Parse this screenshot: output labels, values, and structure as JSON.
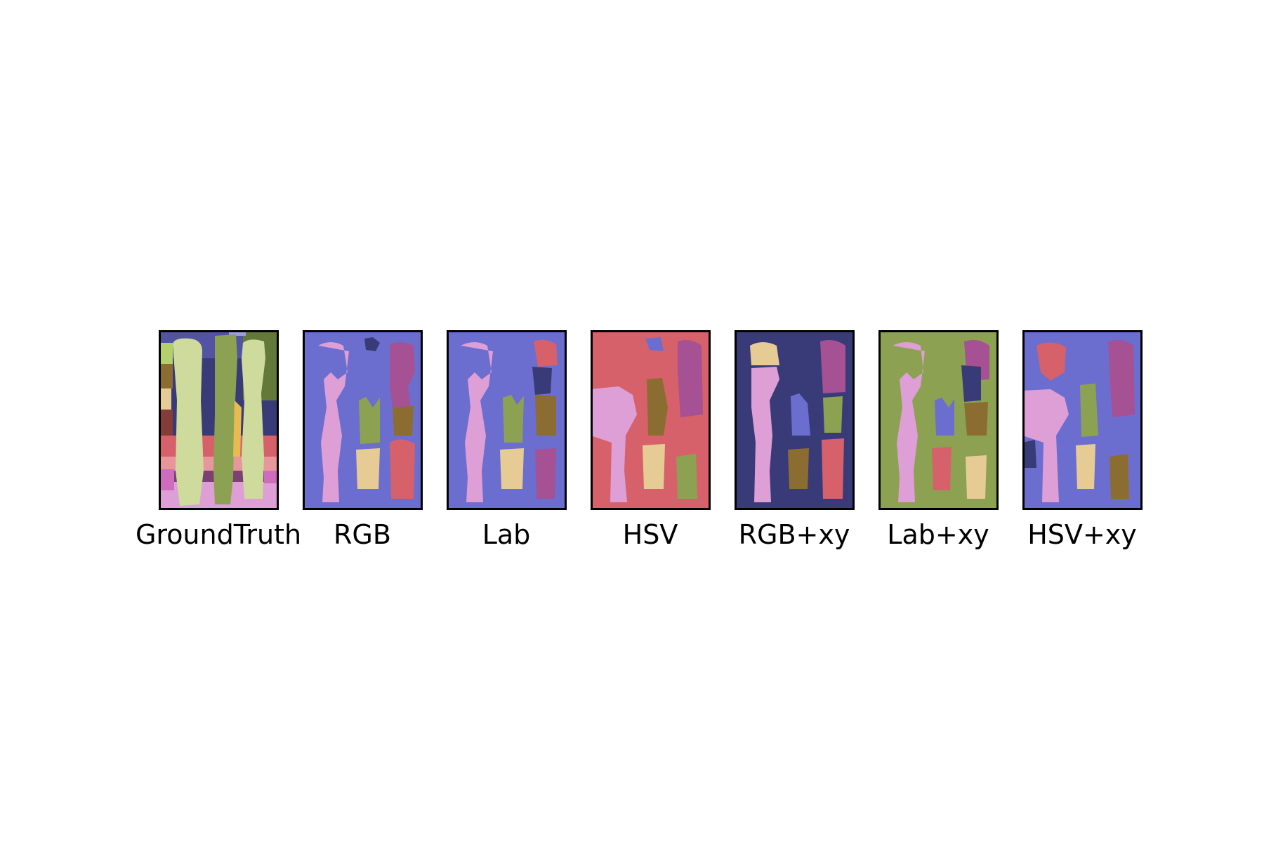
{
  "palette": {
    "periwinkle": "#6b6ecf",
    "navy": "#393b79",
    "pink": "#de9ed6",
    "magenta": "#a55194",
    "olive": "#8ca252",
    "lightolive": "#cedb9c",
    "brown": "#8c6d31",
    "tan": "#e7cb94",
    "red": "#d6616b",
    "gold": "#e7ba52",
    "darkolive": "#637939"
  },
  "panels": [
    {
      "label": "GroundTruth",
      "background": "#6b6ecf"
    },
    {
      "label": "RGB",
      "background": "#6b6ecf"
    },
    {
      "label": "Lab",
      "background": "#6b6ecf"
    },
    {
      "label": "HSV",
      "background": "#d6616b"
    },
    {
      "label": "RGB+xy",
      "background": "#393b79"
    },
    {
      "label": "Lab+xy",
      "background": "#8ca252"
    },
    {
      "label": "HSV+xy",
      "background": "#6b6ecf"
    }
  ]
}
